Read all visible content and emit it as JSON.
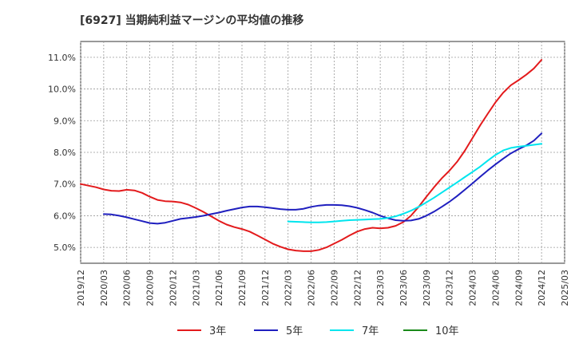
{
  "chart_data": {
    "type": "line",
    "title": "[6927]  当期純利益マージンの平均値の推移",
    "xlabel": "",
    "ylabel": "",
    "ylim": [
      4.5,
      11.5
    ],
    "y_ticks": [
      "5.0%",
      "6.0%",
      "7.0%",
      "8.0%",
      "9.0%",
      "10.0%",
      "11.0%"
    ],
    "y_tick_values": [
      5.0,
      6.0,
      7.0,
      8.0,
      9.0,
      10.0,
      11.0
    ],
    "x_ticks": [
      "2019/12",
      "2020/03",
      "2020/06",
      "2020/09",
      "2020/12",
      "2021/03",
      "2021/06",
      "2021/09",
      "2021/12",
      "2022/03",
      "2022/06",
      "2022/09",
      "2022/12",
      "2023/03",
      "2023/06",
      "2023/09",
      "2023/12",
      "2024/03",
      "2024/06",
      "2024/09",
      "2024/12",
      "2025/03"
    ],
    "grid": true,
    "legend_position": "bottom",
    "series": [
      {
        "name": "3年",
        "color": "#e31a1c",
        "points": [
          [
            "2019/12",
            7.0
          ],
          [
            "2020/01",
            6.95
          ],
          [
            "2020/02",
            6.9
          ],
          [
            "2020/03",
            6.83
          ],
          [
            "2020/04",
            6.79
          ],
          [
            "2020/05",
            6.78
          ],
          [
            "2020/06",
            6.82
          ],
          [
            "2020/07",
            6.8
          ],
          [
            "2020/08",
            6.72
          ],
          [
            "2020/09",
            6.6
          ],
          [
            "2020/10",
            6.5
          ],
          [
            "2020/11",
            6.46
          ],
          [
            "2020/12",
            6.45
          ],
          [
            "2021/01",
            6.42
          ],
          [
            "2021/02",
            6.35
          ],
          [
            "2021/03",
            6.24
          ],
          [
            "2021/04",
            6.12
          ],
          [
            "2021/05",
            5.98
          ],
          [
            "2021/06",
            5.84
          ],
          [
            "2021/07",
            5.72
          ],
          [
            "2021/08",
            5.64
          ],
          [
            "2021/09",
            5.58
          ],
          [
            "2021/10",
            5.5
          ],
          [
            "2021/11",
            5.38
          ],
          [
            "2021/12",
            5.25
          ],
          [
            "2022/01",
            5.12
          ],
          [
            "2022/02",
            5.02
          ],
          [
            "2022/03",
            4.94
          ],
          [
            "2022/04",
            4.9
          ],
          [
            "2022/05",
            4.88
          ],
          [
            "2022/06",
            4.88
          ],
          [
            "2022/07",
            4.92
          ],
          [
            "2022/08",
            5.0
          ],
          [
            "2022/09",
            5.12
          ],
          [
            "2022/10",
            5.24
          ],
          [
            "2022/11",
            5.38
          ],
          [
            "2022/12",
            5.5
          ],
          [
            "2023/01",
            5.58
          ],
          [
            "2023/02",
            5.62
          ],
          [
            "2023/03",
            5.6
          ],
          [
            "2023/04",
            5.62
          ],
          [
            "2023/05",
            5.68
          ],
          [
            "2023/06",
            5.8
          ],
          [
            "2023/07",
            6.0
          ],
          [
            "2023/08",
            6.28
          ],
          [
            "2023/09",
            6.6
          ],
          [
            "2023/10",
            6.9
          ],
          [
            "2023/11",
            7.18
          ],
          [
            "2023/12",
            7.42
          ],
          [
            "2024/01",
            7.7
          ],
          [
            "2024/02",
            8.05
          ],
          [
            "2024/03",
            8.45
          ],
          [
            "2024/04",
            8.85
          ],
          [
            "2024/05",
            9.22
          ],
          [
            "2024/06",
            9.58
          ],
          [
            "2024/07",
            9.88
          ],
          [
            "2024/08",
            10.12
          ],
          [
            "2024/09",
            10.28
          ],
          [
            "2024/10",
            10.45
          ],
          [
            "2024/11",
            10.65
          ],
          [
            "2024/12",
            10.92
          ]
        ]
      },
      {
        "name": "5年",
        "color": "#1f1fbf",
        "points": [
          [
            "2020/03",
            6.05
          ],
          [
            "2020/04",
            6.04
          ],
          [
            "2020/05",
            6.0
          ],
          [
            "2020/06",
            5.95
          ],
          [
            "2020/07",
            5.89
          ],
          [
            "2020/08",
            5.83
          ],
          [
            "2020/09",
            5.77
          ],
          [
            "2020/10",
            5.75
          ],
          [
            "2020/11",
            5.78
          ],
          [
            "2020/12",
            5.84
          ],
          [
            "2021/01",
            5.9
          ],
          [
            "2021/02",
            5.93
          ],
          [
            "2021/03",
            5.96
          ],
          [
            "2021/04",
            6.0
          ],
          [
            "2021/05",
            6.05
          ],
          [
            "2021/06",
            6.1
          ],
          [
            "2021/07",
            6.16
          ],
          [
            "2021/08",
            6.21
          ],
          [
            "2021/09",
            6.26
          ],
          [
            "2021/10",
            6.29
          ],
          [
            "2021/11",
            6.29
          ],
          [
            "2021/12",
            6.27
          ],
          [
            "2022/01",
            6.24
          ],
          [
            "2022/02",
            6.21
          ],
          [
            "2022/03",
            6.19
          ],
          [
            "2022/04",
            6.19
          ],
          [
            "2022/05",
            6.22
          ],
          [
            "2022/06",
            6.28
          ],
          [
            "2022/07",
            6.32
          ],
          [
            "2022/08",
            6.34
          ],
          [
            "2022/09",
            6.34
          ],
          [
            "2022/10",
            6.33
          ],
          [
            "2022/11",
            6.3
          ],
          [
            "2022/12",
            6.25
          ],
          [
            "2023/01",
            6.18
          ],
          [
            "2023/02",
            6.1
          ],
          [
            "2023/03",
            6.0
          ],
          [
            "2023/04",
            5.92
          ],
          [
            "2023/05",
            5.86
          ],
          [
            "2023/06",
            5.84
          ],
          [
            "2023/07",
            5.85
          ],
          [
            "2023/08",
            5.9
          ],
          [
            "2023/09",
            6.0
          ],
          [
            "2023/10",
            6.13
          ],
          [
            "2023/11",
            6.28
          ],
          [
            "2023/12",
            6.44
          ],
          [
            "2024/01",
            6.62
          ],
          [
            "2024/02",
            6.82
          ],
          [
            "2024/03",
            7.02
          ],
          [
            "2024/04",
            7.23
          ],
          [
            "2024/05",
            7.43
          ],
          [
            "2024/06",
            7.62
          ],
          [
            "2024/07",
            7.8
          ],
          [
            "2024/08",
            7.97
          ],
          [
            "2024/09",
            8.1
          ],
          [
            "2024/10",
            8.22
          ],
          [
            "2024/11",
            8.37
          ],
          [
            "2024/12",
            8.6
          ]
        ]
      },
      {
        "name": "7年",
        "color": "#00e5ee",
        "points": [
          [
            "2022/03",
            5.82
          ],
          [
            "2022/04",
            5.81
          ],
          [
            "2022/05",
            5.8
          ],
          [
            "2022/06",
            5.79
          ],
          [
            "2022/07",
            5.79
          ],
          [
            "2022/08",
            5.8
          ],
          [
            "2022/09",
            5.82
          ],
          [
            "2022/10",
            5.84
          ],
          [
            "2022/11",
            5.86
          ],
          [
            "2022/12",
            5.87
          ],
          [
            "2023/01",
            5.88
          ],
          [
            "2023/02",
            5.89
          ],
          [
            "2023/03",
            5.9
          ],
          [
            "2023/04",
            5.93
          ],
          [
            "2023/05",
            5.98
          ],
          [
            "2023/06",
            6.06
          ],
          [
            "2023/07",
            6.16
          ],
          [
            "2023/08",
            6.28
          ],
          [
            "2023/09",
            6.42
          ],
          [
            "2023/10",
            6.57
          ],
          [
            "2023/11",
            6.73
          ],
          [
            "2023/12",
            6.89
          ],
          [
            "2024/01",
            7.05
          ],
          [
            "2024/02",
            7.22
          ],
          [
            "2024/03",
            7.38
          ],
          [
            "2024/04",
            7.55
          ],
          [
            "2024/05",
            7.74
          ],
          [
            "2024/06",
            7.92
          ],
          [
            "2024/07",
            8.06
          ],
          [
            "2024/08",
            8.14
          ],
          [
            "2024/09",
            8.18
          ],
          [
            "2024/10",
            8.21
          ],
          [
            "2024/11",
            8.24
          ],
          [
            "2024/12",
            8.27
          ]
        ]
      },
      {
        "name": "10年",
        "color": "#1a8a1a",
        "points": []
      }
    ]
  }
}
